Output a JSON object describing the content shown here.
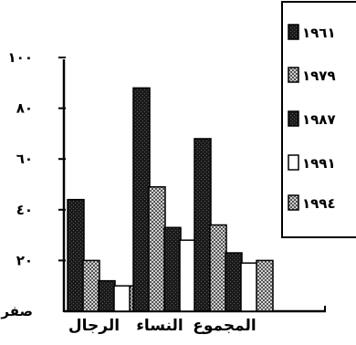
{
  "chart_data": {
    "type": "bar",
    "categories": [
      "الرجال",
      "النساء",
      "المجموع"
    ],
    "series": [
      {
        "name": "١٩٦١",
        "values": [
          44,
          88,
          68
        ]
      },
      {
        "name": "١٩٧٩",
        "values": [
          20,
          49,
          34
        ]
      },
      {
        "name": "١٩٨٧",
        "values": [
          12,
          33,
          23
        ]
      },
      {
        "name": "١٩٩١",
        "values": [
          10,
          28,
          19
        ]
      },
      {
        "name": "١٩٩٤",
        "values": [
          10,
          20,
          20
        ]
      }
    ],
    "y_ticks": [
      {
        "value": 0,
        "label": "صفر"
      },
      {
        "value": 20,
        "label": "٢٠"
      },
      {
        "value": 40,
        "label": "٤٠"
      },
      {
        "value": 60,
        "label": "٦٠"
      },
      {
        "value": 80,
        "label": "٨٠"
      },
      {
        "value": 100,
        "label": "١٠٠"
      }
    ],
    "ylim": [
      0,
      100
    ],
    "title": "",
    "xlabel": "",
    "ylabel": "",
    "grid": false,
    "legend_position": "top-right",
    "series_fills": [
      "solid-dark",
      "checker-gray",
      "solid-dark",
      "white",
      "checker-gray"
    ]
  }
}
